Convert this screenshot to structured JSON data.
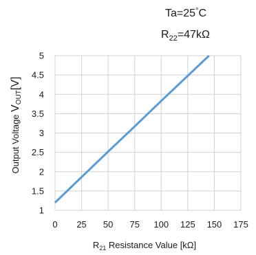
{
  "chart_data": {
    "type": "line",
    "annotations": {
      "ta": {
        "prefix": "Ta=25",
        "deg": "°",
        "unit": "C"
      },
      "r22": {
        "main": "R",
        "sub": "22",
        "rest": "=47kΩ"
      }
    },
    "xlabel": {
      "main": "R",
      "sub": "21",
      "text": " Resistance Value ",
      "unit": "[kΩ]"
    },
    "ylabel": {
      "text": "Output Voltage ",
      "v": "V",
      "sub": "OUT",
      "unit": "[V]"
    },
    "xlim": [
      0,
      175
    ],
    "ylim": [
      1,
      5
    ],
    "xticks": [
      "0",
      "25",
      "50",
      "75",
      "100",
      "125",
      "150",
      "175"
    ],
    "yticks": [
      "1",
      "1.5",
      "2",
      "2.5",
      "3",
      "3.5",
      "4",
      "4.5",
      "5"
    ],
    "grid": true,
    "series": [
      {
        "color": "#5b9bd5",
        "x": [
          0,
          25,
          50,
          75,
          100,
          125,
          145
        ],
        "y": [
          1.2,
          1.86,
          2.52,
          3.17,
          3.83,
          4.48,
          5.0
        ]
      }
    ]
  }
}
